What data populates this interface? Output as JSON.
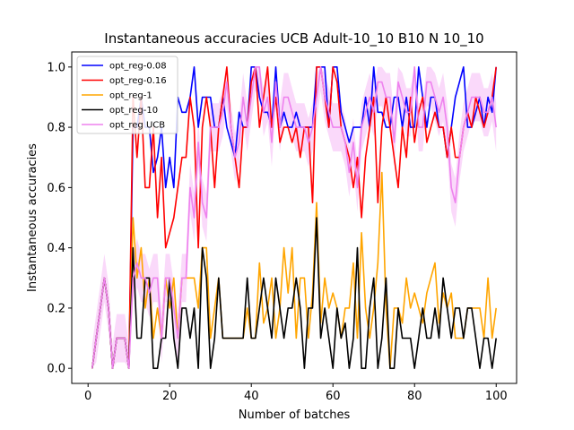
{
  "chart_data": {
    "type": "line",
    "title": "Instantaneous accuracies UCB Adult-10_10 B10 N 10_10",
    "xlabel": "Number of batches",
    "ylabel": "Instantaneous accuracies",
    "xlim": [
      -4,
      105
    ],
    "ylim": [
      -0.05,
      1.05
    ],
    "xticks": [
      0,
      20,
      40,
      60,
      80,
      100
    ],
    "yticks": [
      0.0,
      0.2,
      0.4,
      0.6,
      0.8,
      1.0
    ],
    "xtick_labels": [
      "0",
      "20",
      "40",
      "60",
      "80",
      "100"
    ],
    "ytick_labels": [
      "0.0",
      "0.2",
      "0.4",
      "0.6",
      "0.8",
      "1.0"
    ],
    "grid": false,
    "legend_position": "top-left",
    "x": [
      1,
      2,
      3,
      4,
      5,
      6,
      7,
      8,
      9,
      10,
      11,
      12,
      13,
      14,
      15,
      16,
      17,
      18,
      19,
      20,
      21,
      22,
      23,
      24,
      25,
      26,
      27,
      28,
      29,
      30,
      31,
      32,
      33,
      34,
      35,
      36,
      37,
      38,
      39,
      40,
      41,
      42,
      43,
      44,
      45,
      46,
      47,
      48,
      49,
      50,
      51,
      52,
      53,
      54,
      55,
      56,
      57,
      58,
      59,
      60,
      61,
      62,
      63,
      64,
      65,
      66,
      67,
      68,
      69,
      70,
      71,
      72,
      73,
      74,
      75,
      76,
      77,
      78,
      79,
      80,
      81,
      82,
      83,
      84,
      85,
      86,
      87,
      88,
      89,
      90,
      91,
      92,
      93,
      94,
      95,
      96,
      97,
      98,
      99,
      100
    ],
    "series": [
      {
        "name": "opt_reg-0.08",
        "color": "#0000ff",
        "values": [
          0.0,
          0.1,
          0.2,
          0.3,
          0.2,
          0.0,
          0.1,
          0.1,
          0.1,
          0.0,
          0.8,
          0.8,
          0.9,
          0.8,
          0.8,
          0.65,
          0.7,
          0.8,
          0.6,
          0.7,
          0.6,
          0.9,
          0.85,
          0.85,
          0.9,
          1.0,
          0.8,
          0.9,
          0.9,
          0.9,
          0.8,
          0.8,
          0.9,
          0.8,
          0.75,
          0.7,
          0.85,
          0.8,
          0.8,
          1.0,
          1.0,
          0.9,
          0.85,
          0.85,
          0.8,
          1.0,
          0.8,
          0.85,
          0.8,
          0.8,
          0.85,
          0.8,
          0.8,
          0.8,
          0.8,
          1.0,
          1.0,
          1.0,
          0.8,
          1.0,
          1.0,
          0.85,
          0.8,
          0.75,
          0.8,
          0.8,
          0.8,
          0.9,
          0.8,
          1.0,
          0.85,
          0.85,
          0.8,
          0.8,
          0.9,
          0.9,
          0.8,
          0.9,
          0.8,
          0.8,
          1.0,
          0.9,
          0.8,
          0.9,
          0.9,
          0.8,
          0.8,
          0.7,
          0.8,
          0.9,
          0.95,
          1.0,
          0.8,
          0.8,
          0.85,
          0.9,
          0.8,
          0.9,
          0.85,
          1.0
        ]
      },
      {
        "name": "opt_reg-0.16",
        "color": "#ff0000",
        "values": [
          0.0,
          0.1,
          0.2,
          0.3,
          0.2,
          0.0,
          0.1,
          0.1,
          0.1,
          0.0,
          0.9,
          0.7,
          0.9,
          0.6,
          0.6,
          0.8,
          0.5,
          0.7,
          0.4,
          0.45,
          0.5,
          0.6,
          0.7,
          0.7,
          0.9,
          0.8,
          0.4,
          0.8,
          0.9,
          0.8,
          0.6,
          0.8,
          0.9,
          1.0,
          0.8,
          0.7,
          0.6,
          0.8,
          0.8,
          0.95,
          1.0,
          0.8,
          0.9,
          1.0,
          0.8,
          0.9,
          0.75,
          0.8,
          0.8,
          0.75,
          0.8,
          0.7,
          0.8,
          0.8,
          0.55,
          1.0,
          1.0,
          0.9,
          0.8,
          1.0,
          0.95,
          0.8,
          0.75,
          0.7,
          0.6,
          0.7,
          0.5,
          0.7,
          0.8,
          0.9,
          0.55,
          0.8,
          0.9,
          0.8,
          0.7,
          0.6,
          0.8,
          0.7,
          0.9,
          0.75,
          0.85,
          0.9,
          0.75,
          0.8,
          0.85,
          0.8,
          0.8,
          0.7,
          0.8,
          0.7,
          0.7,
          0.8,
          0.85,
          0.8,
          0.9,
          0.85,
          0.8,
          0.85,
          0.9,
          1.0
        ]
      },
      {
        "name": "opt_reg-1",
        "color": "#ffa500",
        "values": [
          0.0,
          0.1,
          0.2,
          0.3,
          0.2,
          0.0,
          0.1,
          0.1,
          0.1,
          0.0,
          0.5,
          0.3,
          0.4,
          0.2,
          0.3,
          0.1,
          0.2,
          0.1,
          0.3,
          0.2,
          0.3,
          0.1,
          0.3,
          0.3,
          0.3,
          0.3,
          0.2,
          0.4,
          0.4,
          0.1,
          0.2,
          0.3,
          0.1,
          0.1,
          0.1,
          0.1,
          0.1,
          0.1,
          0.2,
          0.1,
          0.1,
          0.35,
          0.15,
          0.2,
          0.3,
          0.1,
          0.2,
          0.4,
          0.25,
          0.4,
          0.1,
          0.3,
          0.3,
          0.1,
          0.25,
          0.55,
          0.15,
          0.3,
          0.2,
          0.25,
          0.2,
          0.1,
          0.2,
          0.2,
          0.35,
          0.1,
          0.45,
          0.2,
          0.1,
          0.2,
          0.35,
          0.65,
          0.2,
          0.0,
          0.2,
          0.2,
          0.15,
          0.3,
          0.2,
          0.25,
          0.2,
          0.15,
          0.25,
          0.3,
          0.35,
          0.15,
          0.25,
          0.2,
          0.25,
          0.1,
          0.1,
          0.1,
          0.2,
          0.2,
          0.2,
          0.2,
          0.1,
          0.3,
          0.1,
          0.2
        ]
      },
      {
        "name": "opt_reg-10",
        "color": "#000000",
        "values": [
          0.0,
          0.1,
          0.2,
          0.3,
          0.2,
          0.0,
          0.1,
          0.1,
          0.1,
          0.0,
          0.4,
          0.1,
          0.1,
          0.3,
          0.3,
          0.0,
          0.0,
          0.1,
          0.1,
          0.3,
          0.1,
          0.0,
          0.2,
          0.2,
          0.1,
          0.2,
          0.0,
          0.4,
          0.3,
          0.0,
          0.1,
          0.3,
          0.1,
          0.1,
          0.1,
          0.1,
          0.1,
          0.1,
          0.3,
          0.1,
          0.1,
          0.2,
          0.3,
          0.2,
          0.1,
          0.3,
          0.2,
          0.1,
          0.2,
          0.2,
          0.3,
          0.2,
          0.0,
          0.2,
          0.2,
          0.5,
          0.1,
          0.2,
          0.1,
          0.0,
          0.2,
          0.1,
          0.15,
          0.0,
          0.1,
          0.4,
          0.0,
          0.0,
          0.2,
          0.3,
          0.0,
          0.1,
          0.3,
          0.0,
          0.0,
          0.2,
          0.1,
          0.1,
          0.1,
          0.0,
          0.1,
          0.2,
          0.1,
          0.1,
          0.2,
          0.1,
          0.3,
          0.2,
          0.1,
          0.2,
          0.2,
          0.1,
          0.2,
          0.2,
          0.1,
          0.0,
          0.1,
          0.1,
          0.0,
          0.1
        ]
      },
      {
        "name": "opt_reg UCB",
        "color": "#ee82ee",
        "values": [
          0.0,
          0.1,
          0.2,
          0.3,
          0.2,
          0.0,
          0.1,
          0.1,
          0.1,
          0.0,
          0.3,
          0.35,
          0.3,
          0.3,
          0.25,
          0.3,
          0.3,
          0.1,
          0.3,
          0.3,
          0.2,
          0.1,
          0.3,
          0.3,
          0.6,
          0.5,
          0.75,
          0.55,
          0.5,
          0.8,
          0.8,
          0.8,
          0.85,
          0.95,
          0.8,
          0.7,
          0.75,
          0.9,
          0.8,
          0.9,
          1.0,
          1.0,
          0.85,
          0.9,
          0.75,
          0.95,
          0.8,
          0.9,
          0.9,
          0.85,
          0.8,
          0.8,
          0.8,
          0.75,
          0.8,
          0.9,
          1.0,
          0.9,
          0.85,
          0.8,
          0.8,
          0.8,
          0.75,
          0.65,
          0.75,
          0.6,
          0.8,
          0.85,
          0.9,
          0.85,
          0.95,
          0.95,
          0.9,
          0.9,
          0.75,
          0.95,
          0.9,
          0.85,
          0.85,
          1.0,
          0.8,
          0.8,
          0.95,
          0.95,
          0.9,
          0.85,
          0.9,
          0.8,
          0.6,
          0.55,
          0.7,
          0.8,
          0.85,
          0.9,
          0.9,
          0.9,
          0.85,
          0.85,
          0.9,
          0.8
        ]
      }
    ],
    "band": {
      "series": "opt_reg UCB",
      "color": "#ee82ee",
      "opacity": 0.3,
      "spread": 0.08
    }
  }
}
